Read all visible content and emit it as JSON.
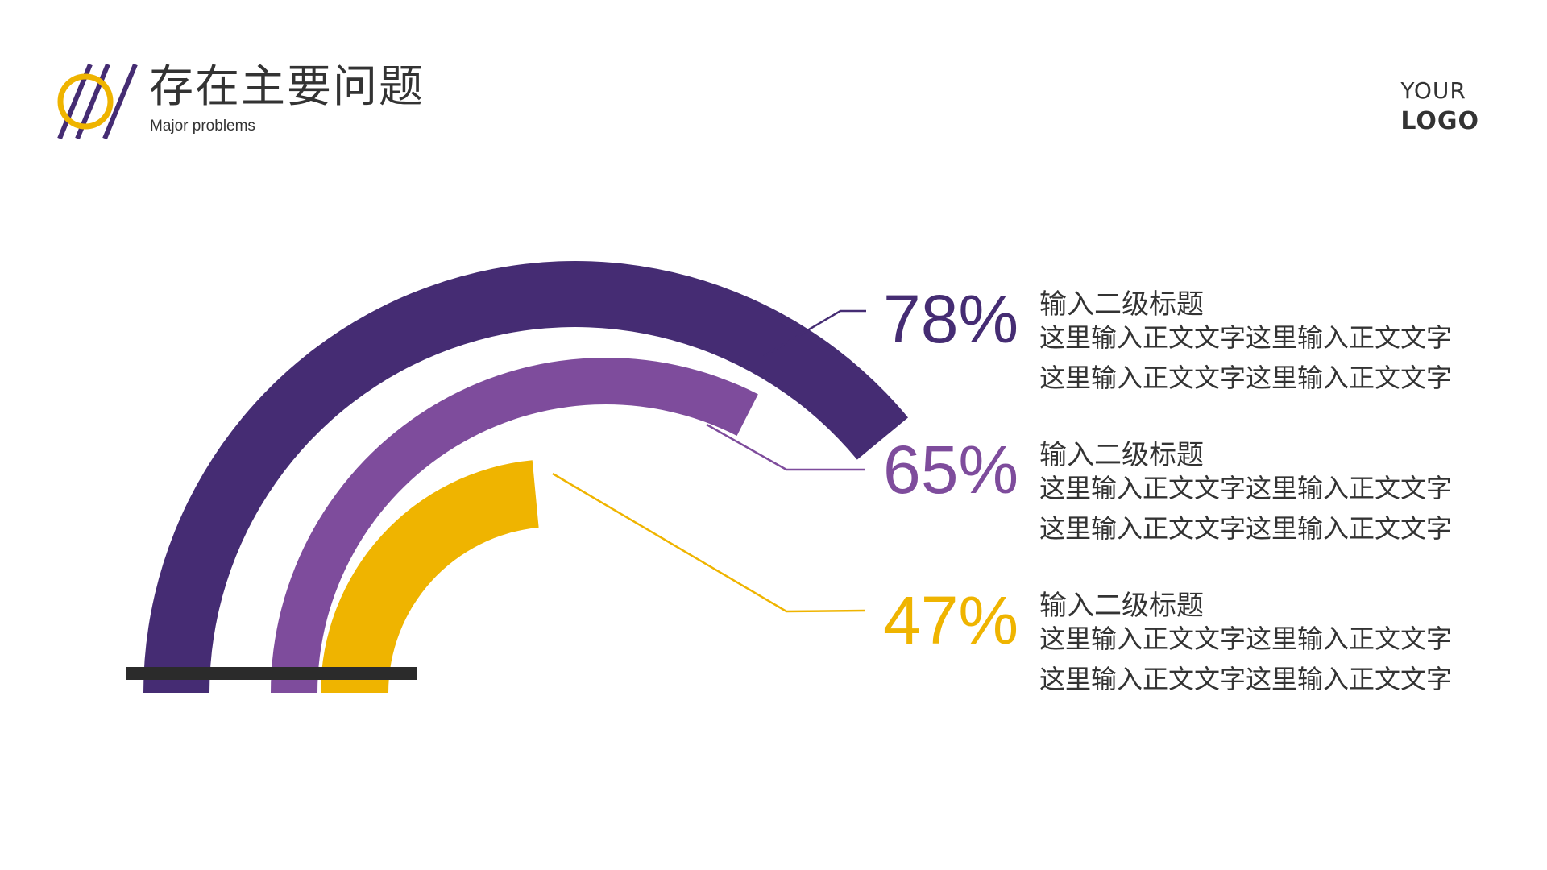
{
  "header": {
    "title": "存在主要问题",
    "subtitle": "Major problems",
    "accent_colors": {
      "ring": "#efb400",
      "slashes": "#452c73"
    }
  },
  "logo": {
    "line1": "YOUR",
    "line2": "LOGO"
  },
  "chart_data": {
    "type": "arc-progress",
    "unit": "%",
    "series": [
      {
        "value": 78,
        "label": "78%",
        "color": "#452c73"
      },
      {
        "value": 65,
        "label": "65%",
        "color": "#7e4c9c"
      },
      {
        "value": 47,
        "label": "47%",
        "color": "#efb400"
      }
    ],
    "baseline_color": "#2b2b2b"
  },
  "items": [
    {
      "title": "输入二级标题",
      "lines": [
        "这里输入正文文字这里输入正文文字",
        "这里输入正文文字这里输入正文文字"
      ]
    },
    {
      "title": "输入二级标题",
      "lines": [
        "这里输入正文文字这里输入正文文字",
        "这里输入正文文字这里输入正文文字"
      ]
    },
    {
      "title": "输入二级标题",
      "lines": [
        "这里输入正文文字这里输入正文文字",
        "这里输入正文文字这里输入正文文字"
      ]
    }
  ]
}
